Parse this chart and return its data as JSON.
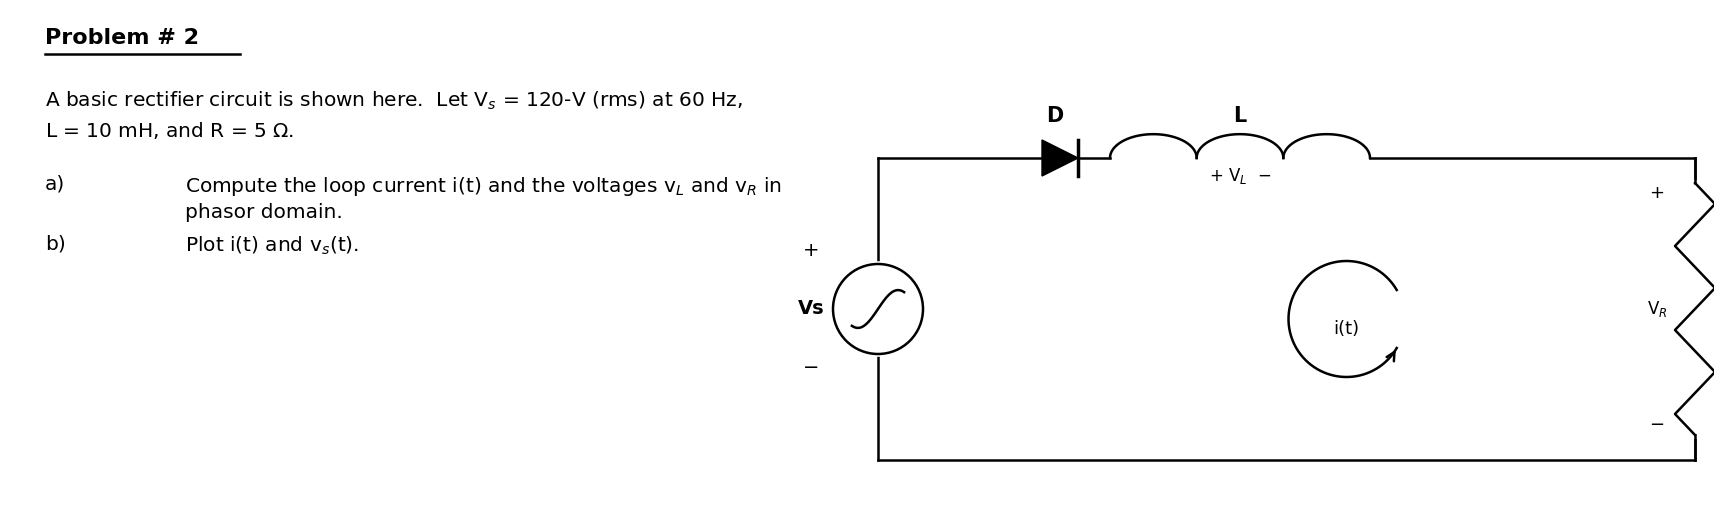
{
  "bg_color": "#ffffff",
  "text_color": "#000000",
  "title": "Problem # 2",
  "line1a": "A basic rectifier circuit is shown here.  Let V",
  "line1b": "s",
  "line1c": " = 120-V (rms) at 60 Hz,",
  "line2": "L = 10 mH, and R = 5 Ω.",
  "item_a_label": "a)",
  "item_a_text1a": "Compute the loop current i(t) and the voltages v",
  "item_a_text1b": "L",
  "item_a_text1c": " and v",
  "item_a_text1d": "R",
  "item_a_text1e": " in",
  "item_a_text2": "phasor domain.",
  "item_b_label": "b)",
  "item_b_text": "Plot i(t) and v",
  "item_b_text2": "s",
  "item_b_text3": "(t).",
  "circuit_label_D": "D",
  "circuit_label_L": "L",
  "circuit_label_Vs": "Vs",
  "circuit_label_it": "i(t)",
  "circuit_label_R": "R"
}
